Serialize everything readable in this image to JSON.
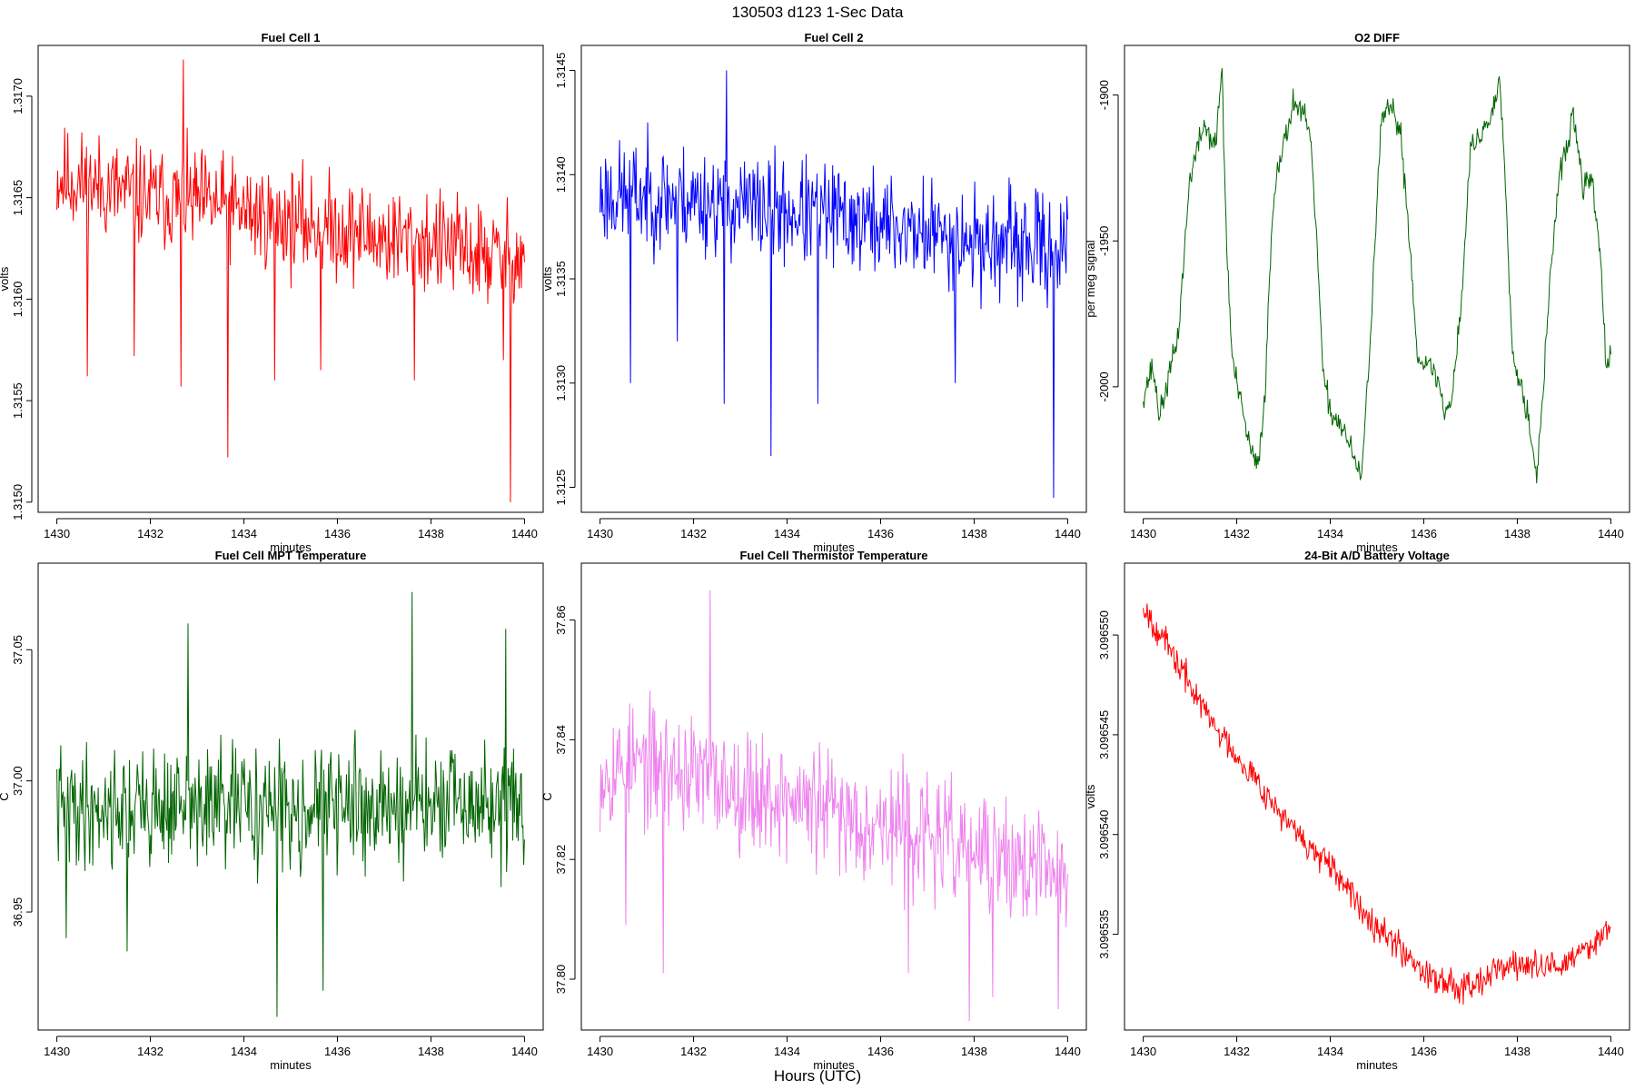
{
  "figure": {
    "title": "130503   d123   1-Sec Data",
    "xlabel": "Hours (UTC)"
  },
  "chart_data": [
    {
      "type": "line",
      "title": "Fuel Cell 1",
      "xlabel": "minutes",
      "ylabel": "volts",
      "color": "#ff0000",
      "xlim": [
        1429.6,
        1440.4
      ],
      "ylim": [
        1.31495,
        1.31725
      ],
      "xticks": [
        1430,
        1432,
        1434,
        1436,
        1438,
        1440
      ],
      "xtick_labels": [
        "1430",
        "1432",
        "1434",
        "1436",
        "1438",
        "1440"
      ],
      "yticks": [
        1.315,
        1.3155,
        1.316,
        1.3165,
        1.317
      ],
      "ytick_labels": [
        "1.3150",
        "1.3155",
        "1.3160",
        "1.3165",
        "1.3170"
      ],
      "x_range": [
        1430,
        1440
      ],
      "keypoints": [
        [
          1430,
          1.3166
        ],
        [
          1431,
          1.31655
        ],
        [
          1432,
          1.3165
        ],
        [
          1433,
          1.31648
        ],
        [
          1434,
          1.31643
        ],
        [
          1435,
          1.31638
        ],
        [
          1436,
          1.31635
        ],
        [
          1437,
          1.3163
        ],
        [
          1438,
          1.31628
        ],
        [
          1439,
          1.31622
        ],
        [
          1440,
          1.3162
        ]
      ],
      "noise": 0.00028,
      "spikes": [
        [
          1430.65,
          1.31562
        ],
        [
          1431.65,
          1.31572
        ],
        [
          1432.65,
          1.31557
        ],
        [
          1432.7,
          1.31718
        ],
        [
          1433.65,
          1.31522
        ],
        [
          1434.65,
          1.3156
        ],
        [
          1435.65,
          1.31565
        ],
        [
          1437.65,
          1.3156
        ],
        [
          1439.55,
          1.3157
        ],
        [
          1439.7,
          1.315
        ]
      ],
      "seed": 11
    },
    {
      "type": "line",
      "title": "Fuel Cell 2",
      "xlabel": "minutes",
      "ylabel": "volts",
      "color": "#0000ff",
      "xlim": [
        1429.6,
        1440.4
      ],
      "ylim": [
        1.31238,
        1.31462
      ],
      "xticks": [
        1430,
        1432,
        1434,
        1436,
        1438,
        1440
      ],
      "xtick_labels": [
        "1430",
        "1432",
        "1434",
        "1436",
        "1438",
        "1440"
      ],
      "yticks": [
        1.3125,
        1.313,
        1.3135,
        1.314,
        1.3145
      ],
      "ytick_labels": [
        "1.3125",
        "1.3130",
        "1.3135",
        "1.3140",
        "1.3145"
      ],
      "x_range": [
        1430,
        1440
      ],
      "keypoints": [
        [
          1430,
          1.3139
        ],
        [
          1431,
          1.3139
        ],
        [
          1432,
          1.31388
        ],
        [
          1433,
          1.31385
        ],
        [
          1434,
          1.31382
        ],
        [
          1435,
          1.3138
        ],
        [
          1436,
          1.31376
        ],
        [
          1437,
          1.31372
        ],
        [
          1438,
          1.31368
        ],
        [
          1439,
          1.31365
        ],
        [
          1440,
          1.31365
        ]
      ],
      "noise": 0.00028,
      "spikes": [
        [
          1430.65,
          1.313
        ],
        [
          1431.65,
          1.3132
        ],
        [
          1432.65,
          1.3129
        ],
        [
          1432.7,
          1.3145
        ],
        [
          1433.65,
          1.31265
        ],
        [
          1434.65,
          1.3129
        ],
        [
          1437.6,
          1.313
        ],
        [
          1439.7,
          1.31245
        ]
      ],
      "seed": 23
    },
    {
      "type": "line",
      "title": "O2 DIFF",
      "xlabel": "minutes",
      "ylabel": "per meg signal",
      "color": "#006400",
      "xlim": [
        1429.6,
        1440.4
      ],
      "ylim": [
        -2043,
        -1883
      ],
      "xticks": [
        1430,
        1432,
        1434,
        1436,
        1438,
        1440
      ],
      "xtick_labels": [
        "1430",
        "1432",
        "1434",
        "1436",
        "1438",
        "1440"
      ],
      "yticks": [
        -2000,
        -1950,
        -1900
      ],
      "ytick_labels": [
        "-2000",
        "-1950",
        "-1900"
      ],
      "x_range": [
        1430,
        1440
      ],
      "keypoints": [
        [
          1430,
          -2003
        ],
        [
          1430.2,
          -1993
        ],
        [
          1430.35,
          -2010
        ],
        [
          1430.5,
          -2000
        ],
        [
          1430.75,
          -1982
        ],
        [
          1430.85,
          -1960
        ],
        [
          1431.0,
          -1928
        ],
        [
          1431.3,
          -1910
        ],
        [
          1431.55,
          -1918
        ],
        [
          1431.68,
          -1890
        ],
        [
          1431.78,
          -1950
        ],
        [
          1431.9,
          -1990
        ],
        [
          1432.05,
          -2003
        ],
        [
          1432.3,
          -2022
        ],
        [
          1432.45,
          -2028
        ],
        [
          1432.6,
          -2003
        ],
        [
          1432.75,
          -1945
        ],
        [
          1432.85,
          -1925
        ],
        [
          1433.05,
          -1915
        ],
        [
          1433.2,
          -1902
        ],
        [
          1433.35,
          -1905
        ],
        [
          1433.55,
          -1912
        ],
        [
          1433.7,
          -1945
        ],
        [
          1433.85,
          -1998
        ],
        [
          1434.05,
          -2010
        ],
        [
          1434.25,
          -2013
        ],
        [
          1434.45,
          -2022
        ],
        [
          1434.65,
          -2032
        ],
        [
          1434.8,
          -2000
        ],
        [
          1434.95,
          -1952
        ],
        [
          1435.1,
          -1908
        ],
        [
          1435.3,
          -1905
        ],
        [
          1435.5,
          -1912
        ],
        [
          1435.7,
          -1950
        ],
        [
          1435.85,
          -1988
        ],
        [
          1436.1,
          -1993
        ],
        [
          1436.3,
          -1997
        ],
        [
          1436.45,
          -2010
        ],
        [
          1436.6,
          -2003
        ],
        [
          1436.8,
          -1972
        ],
        [
          1437.0,
          -1918
        ],
        [
          1437.25,
          -1913
        ],
        [
          1437.5,
          -1905
        ],
        [
          1437.62,
          -1893
        ],
        [
          1437.75,
          -1930
        ],
        [
          1437.9,
          -1990
        ],
        [
          1438.1,
          -2000
        ],
        [
          1438.25,
          -2012
        ],
        [
          1438.42,
          -2030
        ],
        [
          1438.55,
          -2003
        ],
        [
          1438.7,
          -1962
        ],
        [
          1438.9,
          -1928
        ],
        [
          1439.1,
          -1915
        ],
        [
          1439.2,
          -1906
        ],
        [
          1439.4,
          -1932
        ],
        [
          1439.6,
          -1928
        ],
        [
          1439.8,
          -1960
        ],
        [
          1439.9,
          -1995
        ],
        [
          1440.0,
          -1990
        ]
      ],
      "noise": 5,
      "spikes": [],
      "seed": 37
    },
    {
      "type": "line",
      "title": "Fuel Cell MPT Temperature",
      "xlabel": "minutes",
      "ylabel": "C",
      "color": "#006400",
      "xlim": [
        1429.6,
        1440.4
      ],
      "ylim": [
        36.905,
        37.083
      ],
      "xticks": [
        1430,
        1432,
        1434,
        1436,
        1438,
        1440
      ],
      "xtick_labels": [
        "1430",
        "1432",
        "1434",
        "1436",
        "1438",
        "1440"
      ],
      "yticks": [
        36.95,
        37.0,
        37.05
      ],
      "ytick_labels": [
        "36.95",
        "37.00",
        "37.05"
      ],
      "x_range": [
        1430,
        1440
      ],
      "keypoints": [
        [
          1430,
          36.99
        ],
        [
          1435,
          36.99
        ],
        [
          1440,
          36.99
        ]
      ],
      "noise": 0.025,
      "spikes": [
        [
          1430.2,
          36.94
        ],
        [
          1431.5,
          36.935
        ],
        [
          1432.8,
          37.06
        ],
        [
          1434.7,
          36.91
        ],
        [
          1435.7,
          36.92
        ],
        [
          1437.6,
          37.072
        ],
        [
          1439.6,
          37.058
        ]
      ],
      "seed": 41
    },
    {
      "type": "line",
      "title": "Fuel Cell Thermistor Temperature",
      "xlabel": "minutes",
      "ylabel": "C",
      "color": "#ee82ee",
      "xlim": [
        1429.6,
        1440.4
      ],
      "ylim": [
        37.7915,
        37.8695
      ],
      "xticks": [
        1430,
        1432,
        1434,
        1436,
        1438,
        1440
      ],
      "xtick_labels": [
        "1430",
        "1432",
        "1434",
        "1436",
        "1438",
        "1440"
      ],
      "yticks": [
        37.8,
        37.82,
        37.84,
        37.86
      ],
      "ytick_labels": [
        "37.80",
        "37.82",
        "37.84",
        "37.86"
      ],
      "x_range": [
        1430,
        1440
      ],
      "keypoints": [
        [
          1430,
          37.835
        ],
        [
          1431,
          37.836
        ],
        [
          1432,
          37.834
        ],
        [
          1433,
          37.832
        ],
        [
          1434,
          37.83
        ],
        [
          1435,
          37.828
        ],
        [
          1436,
          37.826
        ],
        [
          1437,
          37.824
        ],
        [
          1438,
          37.821
        ],
        [
          1439,
          37.819
        ],
        [
          1440,
          37.817
        ]
      ],
      "noise": 0.011,
      "spikes": [
        [
          1430.55,
          37.809
        ],
        [
          1431.35,
          37.801
        ],
        [
          1432.35,
          37.865
        ],
        [
          1436.6,
          37.801
        ],
        [
          1437.9,
          37.793
        ],
        [
          1438.4,
          37.797
        ],
        [
          1439.8,
          37.795
        ]
      ],
      "seed": 53
    },
    {
      "type": "line",
      "title": "24-Bit A/D Battery Voltage",
      "xlabel": "minutes",
      "ylabel": "volts",
      "color": "#ff0000",
      "xlim": [
        1429.6,
        1440.4
      ],
      "ylim": [
        3.0965302,
        3.0965536
      ],
      "xticks": [
        1430,
        1432,
        1434,
        1436,
        1438,
        1440
      ],
      "xtick_labels": [
        "1430",
        "1432",
        "1434",
        "1436",
        "1438",
        "1440"
      ],
      "yticks": [
        3.096535,
        3.09654,
        3.096545,
        3.09655
      ],
      "ytick_labels": [
        "3.096535",
        "3.096540",
        "3.096545",
        "3.096550"
      ],
      "x_range": [
        1430,
        1440
      ],
      "keypoints": [
        [
          1430,
          3.0965515
        ],
        [
          1430.5,
          3.0965495
        ],
        [
          1431,
          3.0965475
        ],
        [
          1431.5,
          3.0965455
        ],
        [
          1432,
          3.096544
        ],
        [
          1432.5,
          3.0965425
        ],
        [
          1433,
          3.0965408
        ],
        [
          1433.5,
          3.0965395
        ],
        [
          1434,
          3.0965383
        ],
        [
          1434.5,
          3.0965368
        ],
        [
          1435,
          3.0965355
        ],
        [
          1435.5,
          3.0965343
        ],
        [
          1436,
          3.0965332
        ],
        [
          1436.5,
          3.0965325
        ],
        [
          1437,
          3.0965325
        ],
        [
          1437.5,
          3.0965332
        ],
        [
          1438,
          3.0965335
        ],
        [
          1438.5,
          3.0965333
        ],
        [
          1439,
          3.0965335
        ],
        [
          1439.5,
          3.0965343
        ],
        [
          1440,
          3.0965355
        ]
      ],
      "noise": 8.5e-07,
      "spikes": [],
      "seed": 67
    }
  ]
}
